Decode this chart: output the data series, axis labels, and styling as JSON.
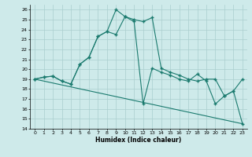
{
  "xlabel": "Humidex (Indice chaleur)",
  "xlim": [
    -0.5,
    23.5
  ],
  "ylim": [
    14,
    26.5
  ],
  "yticks": [
    14,
    15,
    16,
    17,
    18,
    19,
    20,
    21,
    22,
    23,
    24,
    25,
    26
  ],
  "xticks": [
    0,
    1,
    2,
    3,
    4,
    5,
    6,
    7,
    8,
    9,
    10,
    11,
    12,
    13,
    14,
    15,
    16,
    17,
    18,
    19,
    20,
    21,
    22,
    23
  ],
  "bg_color": "#ceeaea",
  "grid_color": "#aacece",
  "line_color": "#1a7a6e",
  "series1_x": [
    0,
    1,
    2,
    3,
    4,
    5,
    6,
    7,
    8,
    9,
    10,
    11,
    12,
    13,
    14,
    15,
    16,
    17,
    18,
    19,
    20,
    21,
    22,
    23
  ],
  "series1_y": [
    19.0,
    19.2,
    19.3,
    18.8,
    18.5,
    20.5,
    21.2,
    23.3,
    23.8,
    23.5,
    25.3,
    25.0,
    24.8,
    25.2,
    20.1,
    19.7,
    19.4,
    19.0,
    18.8,
    19.0,
    19.0,
    17.3,
    17.8,
    19.0
  ],
  "series2_x": [
    0,
    1,
    2,
    3,
    4,
    5,
    6,
    7,
    8,
    9,
    10,
    11,
    12,
    13,
    14,
    15,
    16,
    17,
    18,
    19,
    20,
    21,
    22,
    23
  ],
  "series2_y": [
    19.0,
    19.2,
    19.3,
    18.8,
    18.5,
    20.5,
    21.2,
    23.3,
    23.8,
    26.0,
    25.3,
    24.8,
    16.5,
    20.1,
    19.7,
    19.4,
    19.0,
    18.8,
    19.5,
    18.8,
    16.5,
    17.3,
    17.8,
    14.5
  ],
  "series3_x": [
    0,
    23
  ],
  "series3_y": [
    19.0,
    14.5
  ]
}
